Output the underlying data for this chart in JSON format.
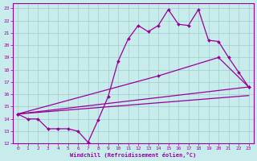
{
  "xlabel": "Windchill (Refroidissement éolien,°C)",
  "bg_color": "#c8ecec",
  "grid_color": "#a0cccc",
  "line_color": "#990099",
  "xlim": [
    -0.5,
    23.5
  ],
  "ylim": [
    12,
    23.4
  ],
  "xticks": [
    0,
    1,
    2,
    3,
    4,
    5,
    6,
    7,
    8,
    9,
    10,
    11,
    12,
    13,
    14,
    15,
    16,
    17,
    18,
    19,
    20,
    21,
    22,
    23
  ],
  "yticks": [
    12,
    13,
    14,
    15,
    16,
    17,
    18,
    19,
    20,
    21,
    22,
    23
  ],
  "line_zigzag": {
    "x": [
      0,
      1,
      2,
      3,
      4,
      5,
      6,
      7,
      8,
      9,
      10,
      11,
      12,
      13,
      14,
      15,
      16,
      17,
      18,
      19,
      20,
      21,
      22,
      23
    ],
    "y": [
      14.4,
      14.0,
      14.0,
      13.2,
      13.2,
      13.2,
      13.0,
      12.1,
      13.9,
      15.8,
      18.7,
      20.5,
      21.6,
      21.1,
      21.6,
      22.9,
      21.7,
      21.6,
      22.9,
      20.4,
      20.3,
      19.0,
      17.8,
      16.6
    ]
  },
  "line_upper": {
    "x": [
      0,
      14,
      20,
      23
    ],
    "y": [
      14.4,
      17.5,
      19.0,
      16.6
    ]
  },
  "line_mid": {
    "x": [
      0,
      23
    ],
    "y": [
      14.4,
      16.6
    ]
  },
  "line_lower": {
    "x": [
      0,
      23
    ],
    "y": [
      14.4,
      15.9
    ]
  }
}
